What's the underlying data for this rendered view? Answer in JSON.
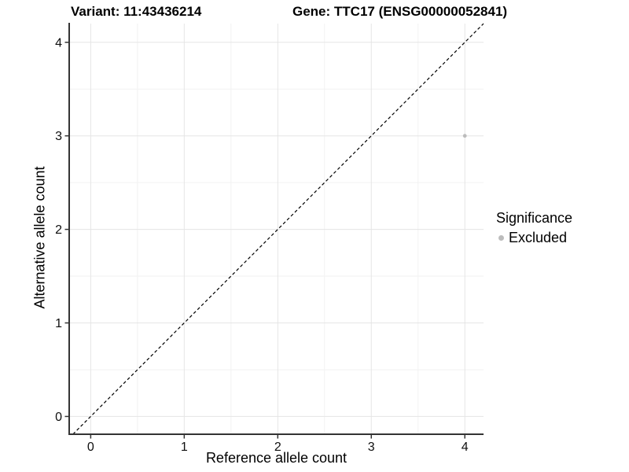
{
  "titles": {
    "variant": "Variant: 11:43436214",
    "gene": "Gene: TTC17 (ENSG00000052841)"
  },
  "legend": {
    "title": "Significance",
    "items": [
      {
        "label": "Excluded",
        "color": "#bcbcbc"
      }
    ]
  },
  "chart_data": {
    "type": "scatter",
    "title": "Variant: 11:43436214 — Gene: TTC17 (ENSG00000052841)",
    "xlabel": "Reference allele count",
    "ylabel": "Alternative allele count",
    "xlim": [
      -0.23,
      4.2
    ],
    "ylim": [
      -0.19,
      4.2
    ],
    "xticks": [
      0,
      1,
      2,
      3,
      4
    ],
    "yticks": [
      0,
      1,
      2,
      3,
      4
    ],
    "minor_xticks": [
      0.5,
      1.5,
      2.5,
      3.5
    ],
    "minor_yticks": [
      0.5,
      1.5,
      2.5,
      3.5
    ],
    "grid": "major+minor",
    "legend_position": "right",
    "series": [
      {
        "name": "Excluded",
        "color": "#bcbcbc",
        "points": [
          {
            "x": 4,
            "y": 3
          }
        ]
      }
    ],
    "reference_line": {
      "kind": "identity",
      "slope": 1,
      "intercept": 0,
      "style": "dashed",
      "color": "#000000"
    },
    "colors": {
      "background": "#ffffff",
      "grid_major": "#e5e5e5",
      "grid_minor": "#f2f2f2",
      "axis_line": "#343434",
      "tick_text": "#0f0f0f"
    }
  }
}
